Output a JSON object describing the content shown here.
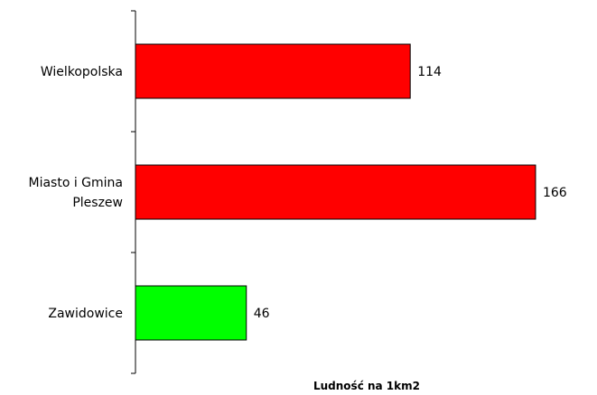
{
  "chart_data": {
    "type": "bar",
    "orientation": "horizontal",
    "categories": [
      [
        "Wielkopolska"
      ],
      [
        "Miasto i Gmina",
        "Pleszew"
      ],
      [
        "Zawidowice"
      ]
    ],
    "values": [
      114,
      166,
      46
    ],
    "colors": [
      "#ff0000",
      "#ff0000",
      "#00ff00"
    ],
    "xlabel": "Ludność na 1km2",
    "ylabel": "",
    "xlim": [
      0,
      190
    ],
    "grid": false
  }
}
